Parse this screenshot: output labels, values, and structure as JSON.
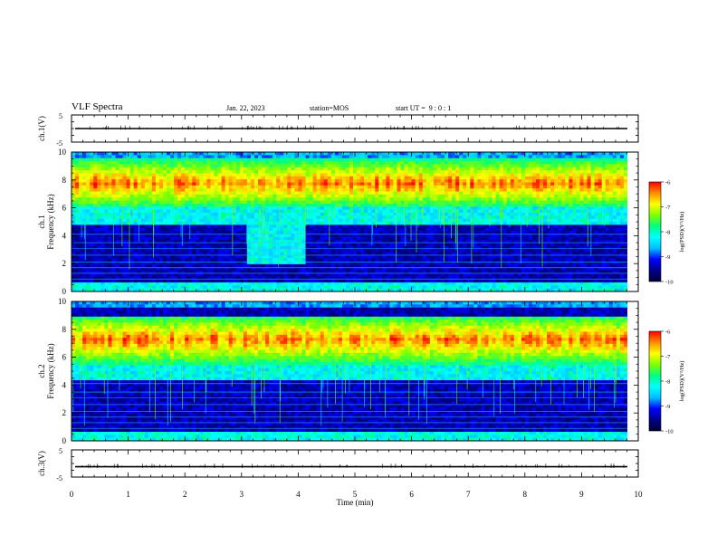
{
  "header": {
    "title": "VLF Spectra",
    "date": "Jan. 22, 2023",
    "station": "station=MOS",
    "start_ut": "start UT =  9 : 0 : 1"
  },
  "chart_data": {
    "type": "heatmap",
    "x_axis": {
      "label": "Time (min)",
      "range": [
        0,
        10
      ],
      "ticks": [
        "0",
        "1",
        "2",
        "3",
        "4",
        "5",
        "6",
        "7",
        "8",
        "9",
        "10"
      ]
    },
    "panels": [
      {
        "id": "ch1-voltage",
        "kind": "line",
        "ylabel": "ch.1(V)",
        "ylim": [
          -5,
          5
        ],
        "yticks": [
          "5",
          "-5"
        ],
        "level": 0
      },
      {
        "id": "ch1-spectrogram",
        "kind": "heatmap",
        "ylabel_line1": "ch.1",
        "ylabel_line2": "Frequency (kHz)",
        "ylim": [
          0,
          10
        ],
        "yticks": [
          "0",
          "2",
          "4",
          "6",
          "8",
          "10"
        ],
        "strong_band_khz": [
          6,
          9.5
        ],
        "enhanced_region": {
          "t_min": [
            3.1,
            4.1
          ],
          "f_khz": [
            2,
            5
          ]
        },
        "colorbar": {
          "label": "log(PSD)(V²/Hz)",
          "range": [
            -10,
            -6
          ],
          "ticks": [
            "-6",
            "-7",
            "-8",
            "-9",
            "-10"
          ]
        }
      },
      {
        "id": "ch2-spectrogram",
        "kind": "heatmap",
        "ylabel_line1": "ch.2",
        "ylabel_line2": "Frequency (kHz)",
        "ylim": [
          0,
          10
        ],
        "yticks": [
          "0",
          "2",
          "4",
          "6",
          "8",
          "10"
        ],
        "strong_band_khz": [
          5.5,
          9
        ],
        "colorbar": {
          "label": "log(PSD)(V²/Hz)",
          "range": [
            -10,
            -6
          ],
          "ticks": [
            "-6",
            "-7",
            "-8",
            "-9",
            "-10"
          ]
        }
      },
      {
        "id": "ch3-voltage",
        "kind": "line",
        "ylabel": "ch.3(V)",
        "ylim": [
          -5,
          5
        ],
        "yticks": [
          "5",
          "-5"
        ],
        "level": -1.2
      }
    ],
    "colormap": [
      "#000033",
      "#00008b",
      "#0000ff",
      "#00bfff",
      "#00ffff",
      "#00ff7f",
      "#7fff00",
      "#ffff00",
      "#ff8c00",
      "#ff0000"
    ]
  }
}
